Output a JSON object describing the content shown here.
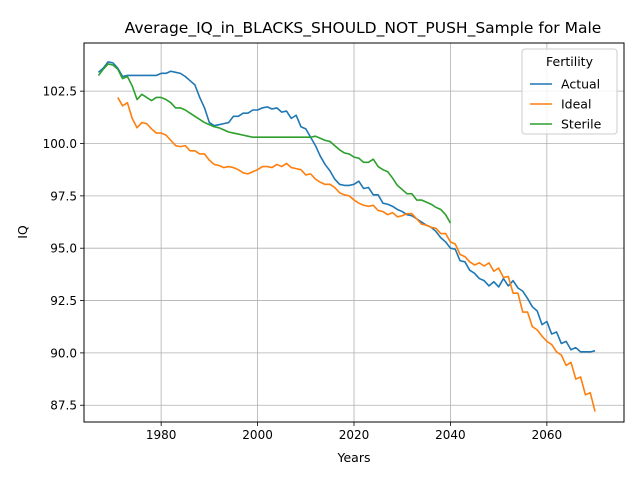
{
  "chart_data": {
    "type": "line",
    "title": "Average_IQ_in_BLACKS_SHOULD_NOT_PUSH_Sample for Male",
    "xlabel": "Years",
    "ylabel": "IQ",
    "xlim": [
      1964,
      2076
    ],
    "ylim": [
      86.7,
      104.8
    ],
    "xticks": [
      1980,
      2000,
      2020,
      2040,
      2060
    ],
    "yticks": [
      87.5,
      90.0,
      92.5,
      95.0,
      97.5,
      100.0,
      102.5
    ],
    "grid": true,
    "legend": {
      "title": "Fertility",
      "placement": "top-right"
    },
    "series": [
      {
        "name": "Actual",
        "color": "#1f77b4",
        "x": [
          1967,
          1968,
          1969,
          1970,
          1971,
          1972,
          1973,
          1974,
          1975,
          1976,
          1977,
          1978,
          1979,
          1980,
          1981,
          1982,
          1983,
          1984,
          1985,
          1986,
          1987,
          1988,
          1989,
          1990,
          1991,
          1992,
          1993,
          1994,
          1995,
          1996,
          1997,
          1998,
          1999,
          2000,
          2001,
          2002,
          2003,
          2004,
          2005,
          2006,
          2007,
          2008,
          2009,
          2010,
          2011,
          2012,
          2013,
          2014,
          2015,
          2016,
          2017,
          2018,
          2019,
          2020,
          2021,
          2022,
          2023,
          2024,
          2025,
          2026,
          2027,
          2028,
          2029,
          2030,
          2031,
          2032,
          2033,
          2034,
          2035,
          2036,
          2037,
          2038,
          2039,
          2040,
          2041,
          2042,
          2043,
          2044,
          2045,
          2046,
          2047,
          2048,
          2049,
          2050,
          2051,
          2052,
          2053,
          2054,
          2055,
          2056,
          2057,
          2058,
          2059,
          2060,
          2061,
          2062,
          2063,
          2064,
          2065,
          2066,
          2067,
          2068,
          2069,
          2070
        ],
        "values": [
          103.4,
          103.6,
          103.9,
          103.85,
          103.6,
          103.2,
          103.25,
          103.25,
          103.25,
          103.25,
          103.25,
          103.25,
          103.25,
          103.35,
          103.35,
          103.45,
          103.4,
          103.35,
          103.2,
          103.0,
          102.8,
          102.2,
          101.7,
          101.0,
          100.85,
          100.9,
          100.95,
          101.0,
          101.3,
          101.3,
          101.45,
          101.45,
          101.6,
          101.6,
          101.7,
          101.75,
          101.65,
          101.7,
          101.5,
          101.55,
          101.2,
          101.35,
          100.8,
          100.7,
          100.3,
          99.9,
          99.4,
          99.0,
          98.7,
          98.3,
          98.05,
          98.0,
          98.0,
          98.05,
          98.2,
          97.85,
          97.9,
          97.55,
          97.55,
          97.15,
          97.1,
          97.0,
          96.85,
          96.75,
          96.6,
          96.55,
          96.4,
          96.25,
          96.1,
          96.0,
          95.8,
          95.5,
          95.3,
          95.0,
          94.95,
          94.4,
          94.35,
          93.95,
          93.8,
          93.55,
          93.45,
          93.2,
          93.4,
          93.15,
          93.55,
          93.2,
          93.45,
          93.1,
          92.95,
          92.6,
          92.2,
          92.0,
          91.35,
          91.5,
          90.9,
          91.0,
          90.45,
          90.55,
          90.15,
          90.25,
          90.05,
          90.05,
          90.05,
          90.1
        ]
      },
      {
        "name": "Ideal",
        "color": "#ff7f0e",
        "x": [
          1971,
          1972,
          1973,
          1974,
          1975,
          1976,
          1977,
          1978,
          1979,
          1980,
          1981,
          1982,
          1983,
          1984,
          1985,
          1986,
          1987,
          1988,
          1989,
          1990,
          1991,
          1992,
          1993,
          1994,
          1995,
          1996,
          1997,
          1998,
          1999,
          2000,
          2001,
          2002,
          2003,
          2004,
          2005,
          2006,
          2007,
          2008,
          2009,
          2010,
          2011,
          2012,
          2013,
          2014,
          2015,
          2016,
          2017,
          2018,
          2019,
          2020,
          2021,
          2022,
          2023,
          2024,
          2025,
          2026,
          2027,
          2028,
          2029,
          2030,
          2031,
          2032,
          2033,
          2034,
          2035,
          2036,
          2037,
          2038,
          2039,
          2040,
          2041,
          2042,
          2043,
          2044,
          2045,
          2046,
          2047,
          2048,
          2049,
          2050,
          2051,
          2052,
          2053,
          2054,
          2055,
          2056,
          2057,
          2058,
          2059,
          2060,
          2061,
          2062,
          2063,
          2064,
          2065,
          2066,
          2067,
          2068,
          2069,
          2070
        ],
        "values": [
          102.2,
          101.8,
          101.95,
          101.2,
          100.75,
          101.0,
          100.95,
          100.7,
          100.5,
          100.5,
          100.4,
          100.15,
          99.9,
          99.85,
          99.9,
          99.65,
          99.65,
          99.5,
          99.5,
          99.2,
          99.0,
          98.95,
          98.85,
          98.9,
          98.85,
          98.75,
          98.6,
          98.55,
          98.65,
          98.75,
          98.9,
          98.9,
          98.85,
          99.0,
          98.9,
          99.05,
          98.85,
          98.8,
          98.75,
          98.5,
          98.55,
          98.3,
          98.15,
          98.05,
          98.05,
          97.9,
          97.65,
          97.55,
          97.5,
          97.3,
          97.15,
          97.05,
          97.0,
          97.05,
          96.8,
          96.75,
          96.6,
          96.7,
          96.5,
          96.55,
          96.65,
          96.65,
          96.4,
          96.15,
          96.1,
          96.0,
          95.95,
          95.7,
          95.7,
          95.3,
          95.2,
          94.7,
          94.6,
          94.35,
          94.2,
          94.3,
          94.15,
          94.3,
          93.9,
          94.05,
          93.6,
          93.65,
          92.85,
          92.85,
          91.95,
          91.95,
          91.25,
          91.1,
          90.8,
          90.55,
          90.4,
          90.05,
          89.9,
          89.4,
          89.55,
          88.75,
          88.85,
          88.0,
          88.1,
          87.2
        ]
      },
      {
        "name": "Sterile",
        "color": "#2ca02c",
        "x": [
          1967,
          1968,
          1969,
          1970,
          1971,
          1972,
          1973,
          1974,
          1975,
          1976,
          1977,
          1978,
          1979,
          1980,
          1981,
          1982,
          1983,
          1984,
          1985,
          1986,
          1987,
          1988,
          1989,
          1990,
          1991,
          1992,
          1993,
          1994,
          1995,
          1996,
          1997,
          1998,
          1999,
          2000,
          2001,
          2002,
          2003,
          2004,
          2005,
          2006,
          2007,
          2008,
          2009,
          2010,
          2011,
          2012,
          2013,
          2014,
          2015,
          2016,
          2017,
          2018,
          2019,
          2020,
          2021,
          2022,
          2023,
          2024,
          2025,
          2026,
          2027,
          2028,
          2029,
          2030,
          2031,
          2032,
          2033,
          2034,
          2035,
          2036,
          2037,
          2038,
          2039,
          2040
        ],
        "values": [
          103.25,
          103.55,
          103.8,
          103.75,
          103.55,
          103.1,
          103.2,
          102.75,
          102.1,
          102.35,
          102.2,
          102.05,
          102.2,
          102.2,
          102.1,
          101.95,
          101.7,
          101.7,
          101.6,
          101.45,
          101.3,
          101.15,
          101.0,
          100.9,
          100.8,
          100.75,
          100.65,
          100.55,
          100.5,
          100.45,
          100.4,
          100.35,
          100.3,
          100.3,
          100.3,
          100.3,
          100.3,
          100.3,
          100.3,
          100.3,
          100.3,
          100.3,
          100.3,
          100.3,
          100.3,
          100.35,
          100.25,
          100.15,
          100.1,
          99.9,
          99.7,
          99.55,
          99.5,
          99.35,
          99.3,
          99.1,
          99.1,
          99.25,
          98.9,
          98.75,
          98.65,
          98.35,
          98.0,
          97.8,
          97.6,
          97.6,
          97.3,
          97.3,
          97.2,
          97.1,
          96.95,
          96.85,
          96.6,
          96.2
        ]
      }
    ]
  }
}
